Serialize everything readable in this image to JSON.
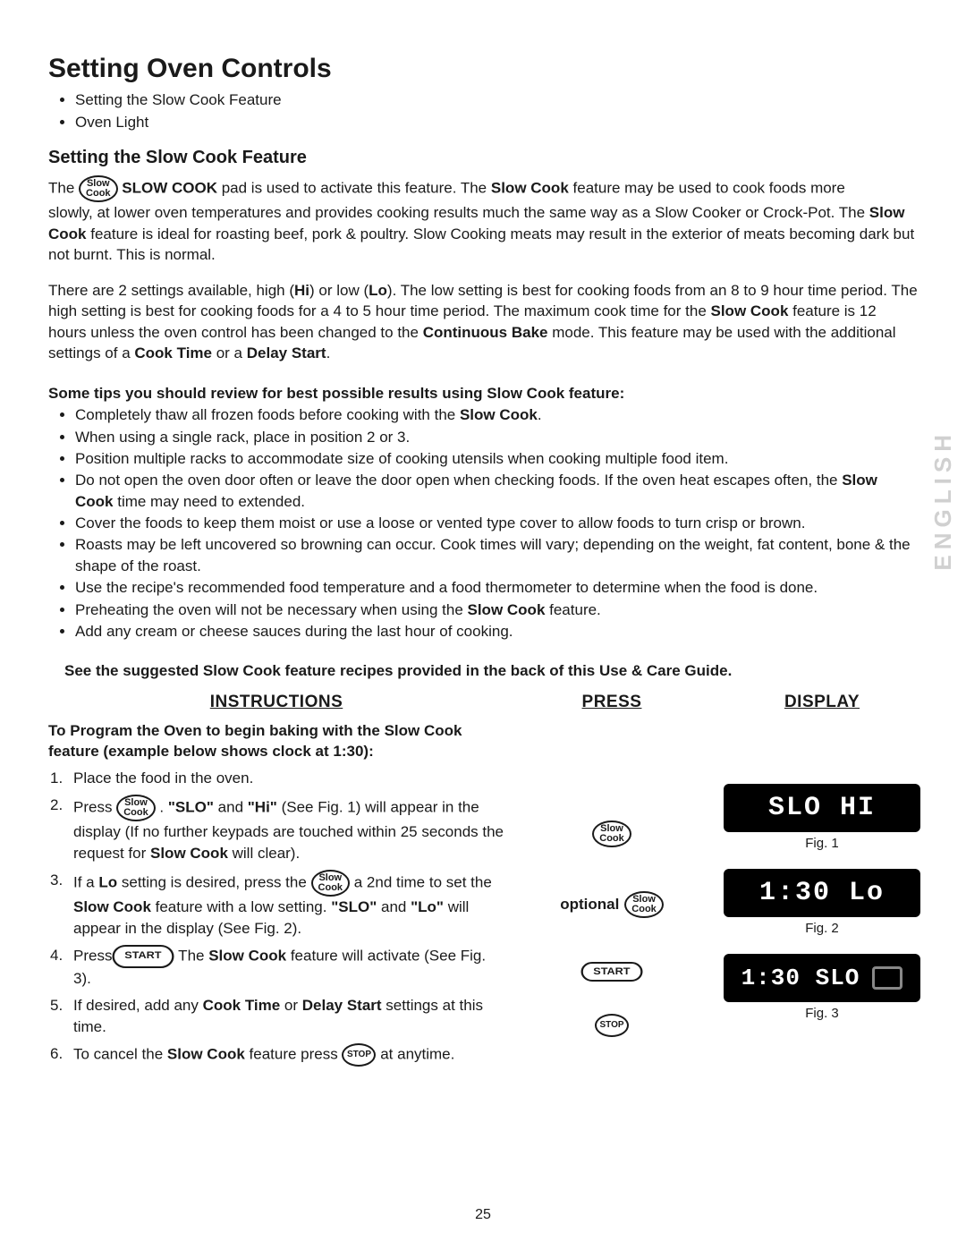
{
  "page": {
    "title": "Setting Oven Controls",
    "top_bullets": [
      "Setting the Slow Cook Feature",
      "Oven Light"
    ],
    "subtitle": "Setting the Slow Cook Feature",
    "number": "25",
    "side_label": "ENGLISH"
  },
  "intro": {
    "p1a": "The ",
    "slow_cook_btn": "Slow Cook",
    "p1b": " SLOW COOK",
    "p1c": " pad is used to activate this feature. The ",
    "p1d": "Slow Cook",
    "p1e": " feature may be used to cook foods more",
    "p2": "slowly, at lower oven temperatures and provides cooking results much the same way as a Slow Cooker or Crock-Pot. The Slow Cook feature is ideal for roasting beef, pork & poultry. Slow Cooking meats may result in the exterior of meats becoming dark but not burnt. This is normal.",
    "p3": "There are 2 settings available, high (Hi) or low (Lo). The low setting is best for cooking foods from an 8 to 9 hour time period. The high setting is best for cooking foods for a 4 to 5 hour time period. The maximum cook time for the Slow Cook feature is 12 hours unless the oven control has been changed to the Continuous Bake mode. This feature may be used with the additional settings of a Cook Time or a Delay Start."
  },
  "tips": {
    "heading": "Some tips you should review for best possible results using Slow Cook feature:",
    "items": [
      "Completely thaw all frozen foods before cooking with the Slow Cook.",
      "When using a single rack, place in position 2 or 3.",
      "Position multiple racks to accommodate size of cooking utensils when cooking multiple food item.",
      "Do not open the oven door often or leave the door open when checking foods. If the oven heat escapes often, the Slow Cook time may need to extended.",
      "Cover the foods to keep them moist or use a loose or vented type cover to allow foods to turn crisp or brown.",
      "Roasts may be left uncovered so browning can occur. Cook times will vary; depending on the weight, fat content, bone & the shape of the roast.",
      "Use the recipe's recommended food temperature and a food thermometer to determine when the food is done.",
      "Preheating the oven will not be necessary when using the Slow Cook feature.",
      "Add any cream or cheese sauces during the last hour of cooking."
    ],
    "see_also": "See the suggested Slow Cook feature recipes provided in the back of this Use & Care Guide."
  },
  "columns": {
    "instructions": "INSTRUCTIONS",
    "press": "PRESS",
    "display": "DISPLAY"
  },
  "program": {
    "heading": "To Program the Oven to begin baking with the Slow Cook feature (example below shows clock at 1:30):",
    "steps": {
      "s1": "Place the food in the oven.",
      "s2a": "Press ",
      "s2b": ". \"SLO\" and \"Hi\" (See Fig. 1) will appear in the display (If no further keypads are touched within 25 seconds the request for Slow Cook will clear).",
      "s3a": "If a Lo setting is desired, press the ",
      "s3b": " a 2nd time to set the Slow Cook feature with a low setting. \"SLO\" and \"Lo\" will appear in the display (See Fig. 2).",
      "s4a": "Press ",
      "s4b": ". The Slow Cook feature will activate (See Fig. 3).",
      "s5": "If desired, add any Cook Time or Delay Start settings at this time.",
      "s6a": "To cancel the Slow Cook feature press ",
      "s6b": " at anytime."
    }
  },
  "press": {
    "optional": "optional",
    "slow_cook_l1": "Slow",
    "slow_cook_l2": "Cook",
    "start": "START",
    "stop": "STOP"
  },
  "display": {
    "fig1_text": "SLO  HI",
    "fig1_label": "Fig. 1",
    "fig2_text": "1:30  Lo",
    "fig2_label": "Fig. 2",
    "fig3_text": "1:30 SLO",
    "fig3_label": "Fig. 3"
  },
  "style": {
    "bg": "#ffffff",
    "text": "#1a1a1a",
    "display_bg": "#000000",
    "display_fg": "#ffffff",
    "side_gray": "#d0d0d0",
    "body_fontsize": 17,
    "h1_fontsize": 30,
    "h2_fontsize": 20,
    "display_fontsize": 30
  }
}
